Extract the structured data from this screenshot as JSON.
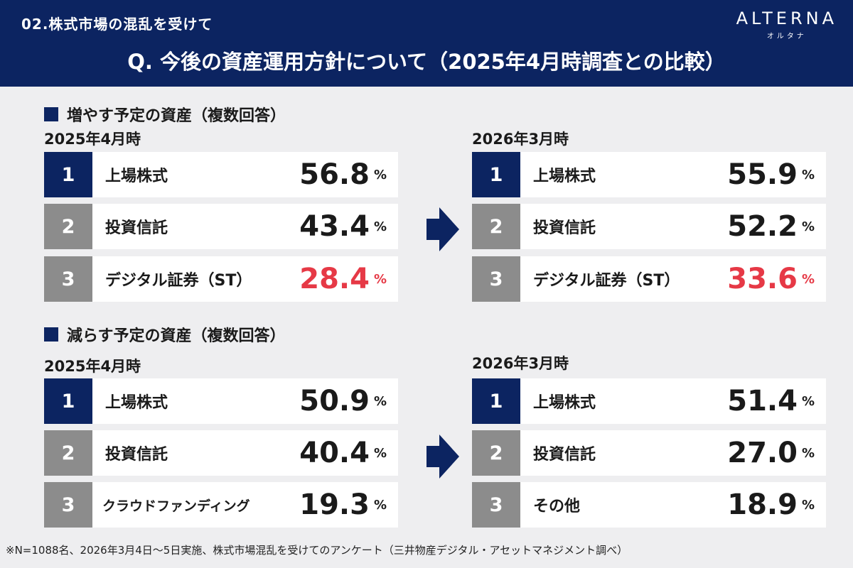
{
  "header": {
    "subtitle": "02.株式市場の混乱を受けて",
    "title": "Q. 今後の資産運用方針について（2025年4月時調査との比較）",
    "logo": "ALTERNA",
    "logo_kana": "オルタナ"
  },
  "increase": {
    "heading": "増やす予定の資産（複数回答）",
    "left": {
      "period": "2025年4月時",
      "items": [
        {
          "rank": "1",
          "name": "上場株式",
          "value": "56.8",
          "unit": "%"
        },
        {
          "rank": "2",
          "name": "投資信託",
          "value": "43.4",
          "unit": "%"
        },
        {
          "rank": "3",
          "name": "デジタル証券（ST）",
          "value": "28.4",
          "unit": "%"
        }
      ]
    },
    "right": {
      "period": "2026年3月時",
      "items": [
        {
          "rank": "1",
          "name": "上場株式",
          "value": "55.9",
          "unit": "%"
        },
        {
          "rank": "2",
          "name": "投資信託",
          "value": "52.2",
          "unit": "%"
        },
        {
          "rank": "3",
          "name": "デジタル証券（ST）",
          "value": "33.6",
          "unit": "%"
        }
      ]
    }
  },
  "decrease": {
    "heading": "減らす予定の資産（複数回答）",
    "left": {
      "period": "2025年4月時",
      "items": [
        {
          "rank": "1",
          "name": "上場株式",
          "value": "50.9",
          "unit": "%"
        },
        {
          "rank": "2",
          "name": "投資信託",
          "value": "40.4",
          "unit": "%"
        },
        {
          "rank": "3",
          "name": "クラウドファンディング",
          "value": "19.3",
          "unit": "%"
        }
      ]
    },
    "right": {
      "period": "2026年3月時",
      "items": [
        {
          "rank": "1",
          "name": "上場株式",
          "value": "51.4",
          "unit": "%"
        },
        {
          "rank": "2",
          "name": "投資信託",
          "value": "27.0",
          "unit": "%"
        },
        {
          "rank": "3",
          "name": "その他",
          "value": "18.9",
          "unit": "%"
        }
      ]
    }
  },
  "footnote": "※N=1088名、2026年3月4日〜5日実施、株式市場混乱を受けてのアンケート（三井物産デジタル・アセットマネジメント調べ）",
  "colors": {
    "navy": "#0c2461",
    "gray_rank": "#8c8c8c",
    "highlight_red": "#e63946",
    "background": "#eeeef0"
  },
  "icons": [
    "right-arrow-icon"
  ]
}
